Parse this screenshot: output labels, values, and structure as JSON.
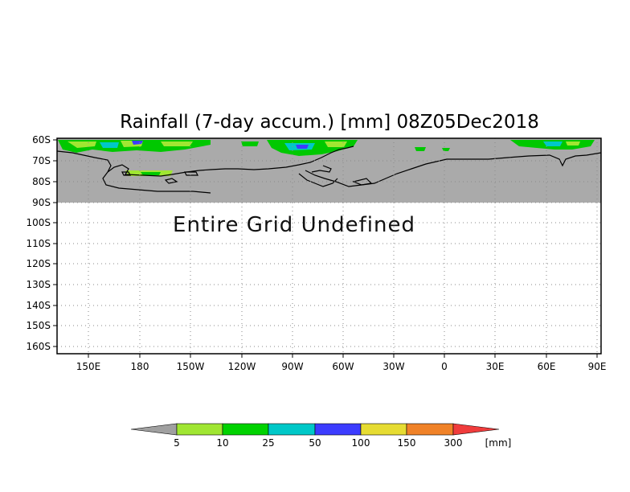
{
  "title": "Rainfall (7-day accum.) [mm] 08Z05Dec2018",
  "message": "Entire Grid Undefined",
  "lat_labels": [
    "60S",
    "70S",
    "80S",
    "90S",
    "100S",
    "110S",
    "120S",
    "130S",
    "140S",
    "150S",
    "160S"
  ],
  "lon_labels": [
    "150E",
    "180",
    "150W",
    "120W",
    "90W",
    "60W",
    "30W",
    "0",
    "30E",
    "60E",
    "90E"
  ],
  "colors": {
    "undefined_fill": "#aaaaaa",
    "coastline": "#000000",
    "grid": "#888888"
  },
  "legend": {
    "labels": [
      "5",
      "10",
      "25",
      "50",
      "100",
      "150",
      "300"
    ],
    "unit": "[mm]",
    "colors": [
      "#a0a0a0",
      "#a0e632",
      "#00d200",
      "#00c8c8",
      "#3c3cff",
      "#e6dc32",
      "#f08228",
      "#f03c3c"
    ]
  },
  "icons": {
    "legend_arrows": "triangle-arrow"
  }
}
